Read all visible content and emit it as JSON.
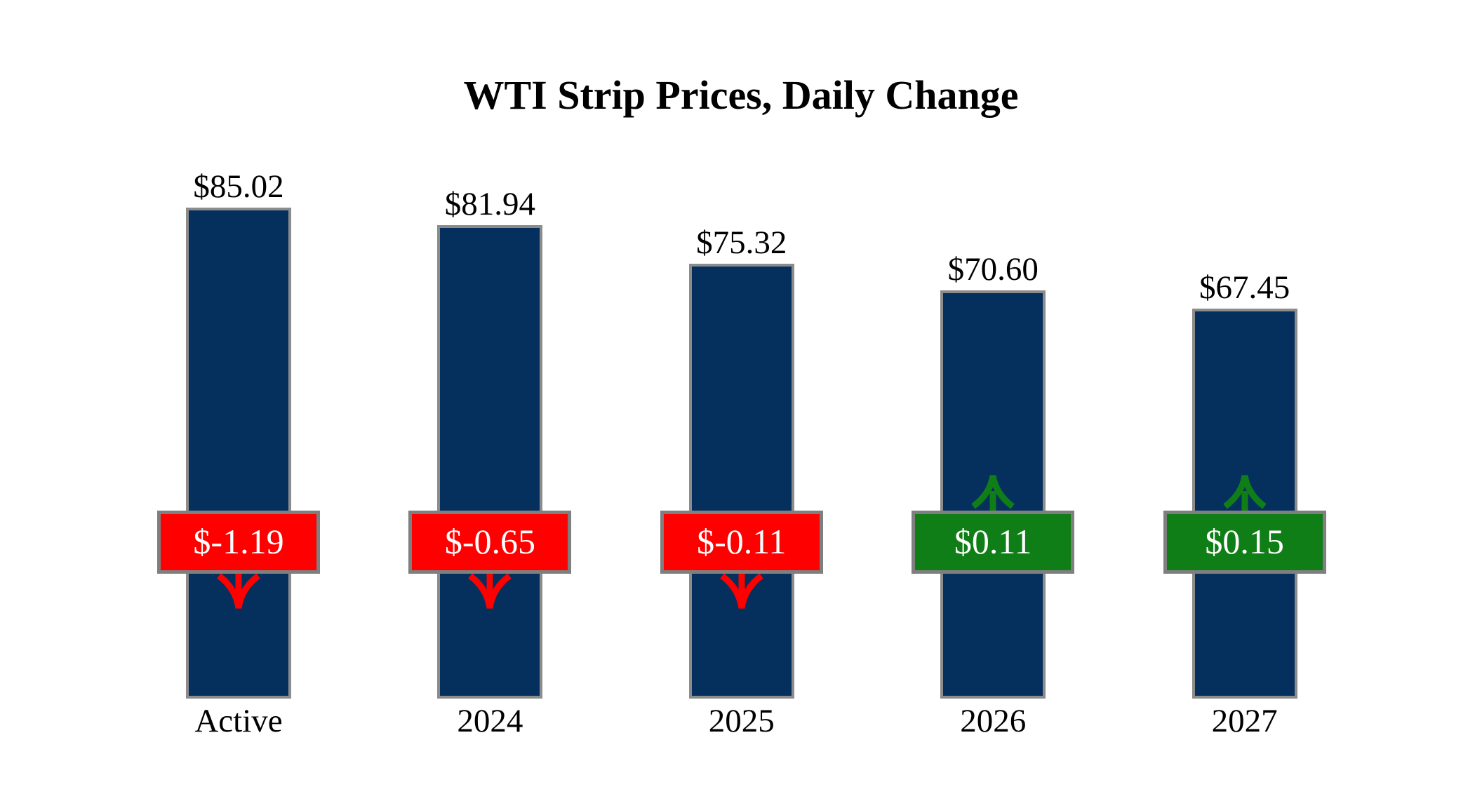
{
  "title": "WTI Strip Prices, Daily Change",
  "chart_data": {
    "type": "bar",
    "title": "WTI Strip Prices, Daily Change",
    "categories": [
      "Active",
      "2024",
      "2025",
      "2026",
      "2027"
    ],
    "series": [
      {
        "name": "strip_price",
        "values": [
          85.02,
          81.94,
          75.32,
          70.6,
          67.45
        ]
      },
      {
        "name": "daily_change",
        "values": [
          -1.19,
          -0.65,
          -0.11,
          0.11,
          0.15
        ]
      }
    ],
    "price_labels": [
      "$85.02",
      "$81.94",
      "$75.32",
      "$70.60",
      "$67.45"
    ],
    "change_labels": [
      "$-1.19",
      "$-0.65",
      "$-0.11",
      "$0.11",
      "$0.15"
    ],
    "legend": "none",
    "gridlines": false,
    "value_axis_visible": false
  },
  "icons": {
    "negative_change": "down-arrow-icon",
    "positive_change": "up-arrow-icon"
  },
  "colors": {
    "background": "#ffffff",
    "bar_fill": "#05305e",
    "bar_border": "#8c8c8c",
    "badge_border": "#7f7f7f",
    "negative": "#ff0000",
    "positive": "#107e16",
    "badge_text": "#ffffff",
    "label_text": "#000000"
  }
}
